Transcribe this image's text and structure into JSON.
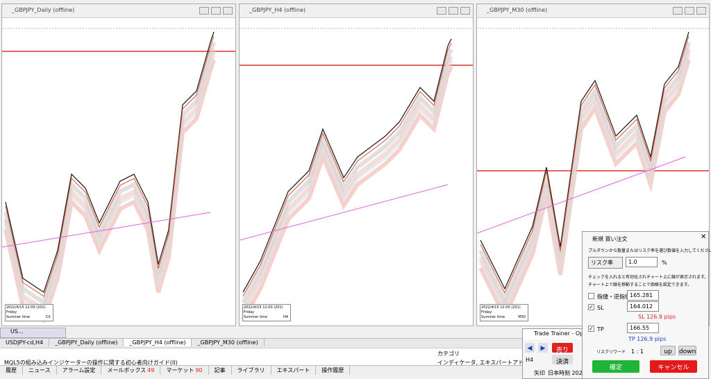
{
  "windows": [
    {
      "title": "_GBPJPY_Daily (offline)",
      "info": [
        "2022/4/15 12:00 (201)",
        "Friday",
        "Summer time"
      ],
      "tf": "D1"
    },
    {
      "title": "_GBPJPY_H4 (offline)",
      "info": [
        "2022/4/15 12:00 (201)",
        "Friday",
        "Summer time"
      ],
      "tf": "H4"
    },
    {
      "title": "_GBPJPY_M30 (offline)",
      "info": [
        "2022/4/15 12:00 (201)",
        "Friday",
        "Summer time"
      ],
      "tf": "M30"
    }
  ],
  "mini_window": "US...",
  "chart_tabs": [
    "USDJPY-cd,H4",
    "_GBPJPY_Daily (offline)",
    "_GBPJPY_H4 (offline)",
    "_GBPJPY_M30 (offline)"
  ],
  "terminal": {
    "article": "MQL5の組み込みインジケーターの操作に関する初心者向けガイド(II)",
    "category_header": "カテゴリ",
    "category": "インディケータ, エキスパートアドバイザー, インディ"
  },
  "bottom_tabs": [
    "履歴",
    "ニュース",
    "アラーム設定",
    "メールボックス",
    "マーケット",
    "記事",
    "ライブラリ",
    "エキスパート",
    "操作履歴"
  ],
  "mail_count": "49",
  "market_count": "90",
  "trade_trainer": {
    "title": "Trade Trainer - Operat",
    "sell": "売り",
    "tf": "H4",
    "close": "決済",
    "arrow": "矢印",
    "time": "日本時刻 2022/"
  },
  "dialog": {
    "title": "新規 買い注文",
    "instruction": "プルダウンから数量またはリスク率を選び数値を入力してください。",
    "mode": "リスク率",
    "risk": "1.0",
    "unit": "%",
    "note1": "チェックを入れると有効化されチャート上に線が表示されます。",
    "note2": "チャート上で線を移動することで価格を設定できます。",
    "entry_label": "指値・逆指値",
    "entry": "165.281",
    "sl_label": "SL",
    "sl": "164.012",
    "sl_pips": "SL 126.9 pips",
    "tp_label": "TP",
    "tp": "166.55",
    "tp_pips": "TP 126.9 pips",
    "rr_label": "リスクリワード",
    "rr": "1 : 1",
    "up": "up",
    "down": "down",
    "ok": "確定",
    "cancel": "キャンセル"
  }
}
